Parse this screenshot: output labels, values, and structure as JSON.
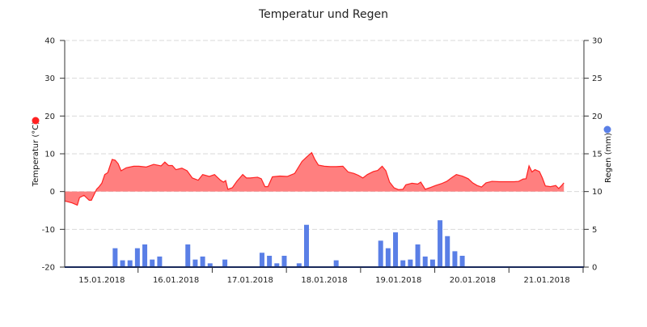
{
  "chart_data": {
    "type": "line",
    "title": "Temperatur und Regen",
    "grid": true,
    "x_labels": [
      "15.01.2018",
      "16.01.2018",
      "17.01.2018",
      "18.01.2018",
      "19.01.2018",
      "20.01.2018",
      "21.01.2018"
    ],
    "y_left": {
      "label": "Temperatur (°C)",
      "ylim": [
        -20,
        40
      ],
      "ticks": [
        -20,
        -10,
        0,
        10,
        20,
        30,
        40
      ],
      "tick_labels": [
        "-20",
        "-10",
        "0",
        "10",
        "20",
        "30",
        "40"
      ],
      "color": "#ff2222"
    },
    "y_right": {
      "label": "Regen (mm)",
      "ylim": [
        0,
        30
      ],
      "ticks": [
        0,
        5,
        10,
        15,
        20,
        25,
        30
      ],
      "tick_labels": [
        "0",
        "5",
        "10",
        "15",
        "20",
        "25",
        "30"
      ],
      "color": "#5a7fe6"
    },
    "series": [
      {
        "name": "Temperatur",
        "type": "area",
        "color": "#ff2222",
        "fill": "#ff7f7f",
        "points": [
          [
            0.0,
            -2.5
          ],
          [
            0.1,
            -3.0
          ],
          [
            0.17,
            -3.6
          ],
          [
            0.2,
            -1.6
          ],
          [
            0.26,
            -1.0
          ],
          [
            0.33,
            -2.3
          ],
          [
            0.36,
            -2.3
          ],
          [
            0.43,
            0.6
          ],
          [
            0.46,
            1.2
          ],
          [
            0.5,
            2.2
          ],
          [
            0.54,
            4.5
          ],
          [
            0.58,
            5.0
          ],
          [
            0.64,
            8.5
          ],
          [
            0.68,
            8.3
          ],
          [
            0.72,
            7.4
          ],
          [
            0.76,
            5.5
          ],
          [
            0.83,
            6.3
          ],
          [
            0.93,
            6.7
          ],
          [
            1.0,
            6.7
          ],
          [
            1.1,
            6.5
          ],
          [
            1.2,
            7.2
          ],
          [
            1.3,
            6.8
          ],
          [
            1.35,
            7.8
          ],
          [
            1.4,
            6.9
          ],
          [
            1.45,
            6.9
          ],
          [
            1.5,
            5.8
          ],
          [
            1.58,
            6.2
          ],
          [
            1.65,
            5.5
          ],
          [
            1.72,
            3.6
          ],
          [
            1.8,
            3.0
          ],
          [
            1.86,
            4.5
          ],
          [
            1.95,
            4.0
          ],
          [
            2.02,
            4.5
          ],
          [
            2.1,
            3.0
          ],
          [
            2.14,
            2.5
          ],
          [
            2.17,
            2.9
          ],
          [
            2.2,
            0.6
          ],
          [
            2.26,
            1.0
          ],
          [
            2.32,
            2.7
          ],
          [
            2.4,
            4.5
          ],
          [
            2.45,
            3.6
          ],
          [
            2.5,
            3.6
          ],
          [
            2.6,
            3.8
          ],
          [
            2.65,
            3.4
          ],
          [
            2.7,
            1.3
          ],
          [
            2.74,
            1.3
          ],
          [
            2.8,
            3.9
          ],
          [
            2.9,
            4.1
          ],
          [
            3.0,
            4.0
          ],
          [
            3.1,
            4.8
          ],
          [
            3.2,
            8.0
          ],
          [
            3.27,
            9.3
          ],
          [
            3.33,
            10.3
          ],
          [
            3.37,
            8.6
          ],
          [
            3.42,
            7.0
          ],
          [
            3.5,
            6.7
          ],
          [
            3.58,
            6.6
          ],
          [
            3.66,
            6.6
          ],
          [
            3.75,
            6.7
          ],
          [
            3.82,
            5.2
          ],
          [
            3.9,
            4.8
          ],
          [
            3.96,
            4.3
          ],
          [
            4.02,
            3.6
          ],
          [
            4.08,
            4.5
          ],
          [
            4.16,
            5.3
          ],
          [
            4.22,
            5.6
          ],
          [
            4.28,
            6.7
          ],
          [
            4.33,
            5.5
          ],
          [
            4.38,
            2.5
          ],
          [
            4.44,
            1.0
          ],
          [
            4.5,
            0.5
          ],
          [
            4.56,
            0.6
          ],
          [
            4.6,
            1.8
          ],
          [
            4.68,
            2.2
          ],
          [
            4.76,
            2.0
          ],
          [
            4.8,
            2.5
          ],
          [
            4.86,
            0.6
          ],
          [
            4.92,
            1.0
          ],
          [
            5.0,
            1.6
          ],
          [
            5.08,
            2.1
          ],
          [
            5.15,
            2.7
          ],
          [
            5.22,
            3.7
          ],
          [
            5.28,
            4.5
          ],
          [
            5.36,
            4.1
          ],
          [
            5.44,
            3.4
          ],
          [
            5.5,
            2.3
          ],
          [
            5.56,
            1.6
          ],
          [
            5.62,
            1.2
          ],
          [
            5.68,
            2.3
          ],
          [
            5.76,
            2.7
          ],
          [
            5.86,
            2.6
          ],
          [
            5.96,
            2.6
          ],
          [
            6.06,
            2.6
          ],
          [
            6.12,
            2.7
          ],
          [
            6.18,
            3.3
          ],
          [
            6.22,
            3.4
          ],
          [
            6.26,
            6.8
          ],
          [
            6.3,
            5.2
          ],
          [
            6.34,
            5.8
          ],
          [
            6.4,
            5.3
          ],
          [
            6.44,
            3.6
          ],
          [
            6.48,
            1.5
          ],
          [
            6.55,
            1.3
          ],
          [
            6.62,
            1.6
          ],
          [
            6.66,
            0.8
          ],
          [
            6.7,
            1.6
          ],
          [
            6.73,
            2.3
          ]
        ]
      },
      {
        "name": "Regen",
        "type": "bar",
        "color": "#5a7fe6",
        "axis": "right",
        "points": [
          [
            0.68,
            2.5
          ],
          [
            0.78,
            0.9
          ],
          [
            0.88,
            0.9
          ],
          [
            0.98,
            2.5
          ],
          [
            1.08,
            3.0
          ],
          [
            1.18,
            1.0
          ],
          [
            1.28,
            1.4
          ],
          [
            1.66,
            3.0
          ],
          [
            1.76,
            1.0
          ],
          [
            1.86,
            1.4
          ],
          [
            1.96,
            0.5
          ],
          [
            2.16,
            1.0
          ],
          [
            2.66,
            1.9
          ],
          [
            2.76,
            1.5
          ],
          [
            2.86,
            0.5
          ],
          [
            2.96,
            1.5
          ],
          [
            3.16,
            0.5
          ],
          [
            3.26,
            5.6
          ],
          [
            3.66,
            0.9
          ],
          [
            4.26,
            3.5
          ],
          [
            4.36,
            2.5
          ],
          [
            4.46,
            4.6
          ],
          [
            4.56,
            0.9
          ],
          [
            4.66,
            1.0
          ],
          [
            4.76,
            3.0
          ],
          [
            4.86,
            1.4
          ],
          [
            4.96,
            1.0
          ],
          [
            5.06,
            6.2
          ],
          [
            5.16,
            4.1
          ],
          [
            5.26,
            2.1
          ],
          [
            5.36,
            1.5
          ]
        ]
      }
    ]
  }
}
